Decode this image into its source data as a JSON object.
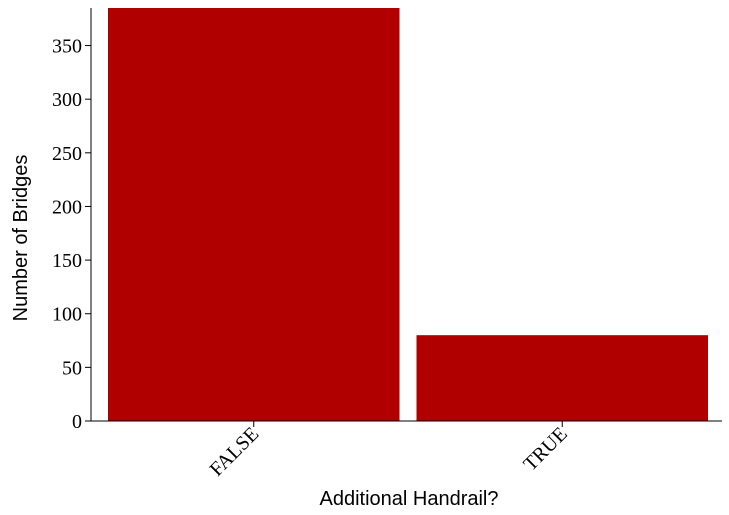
{
  "chart_data": {
    "type": "bar",
    "categories": [
      "FALSE",
      "TRUE"
    ],
    "values": [
      385,
      80
    ],
    "xlabel": "Additional Handrail?",
    "ylabel": "Number of Bridges",
    "ylim": [
      0,
      385
    ],
    "yticks": [
      0,
      50,
      100,
      150,
      200,
      250,
      300,
      350
    ],
    "bar_color": "#b00000",
    "grid": false,
    "legend": "none"
  }
}
